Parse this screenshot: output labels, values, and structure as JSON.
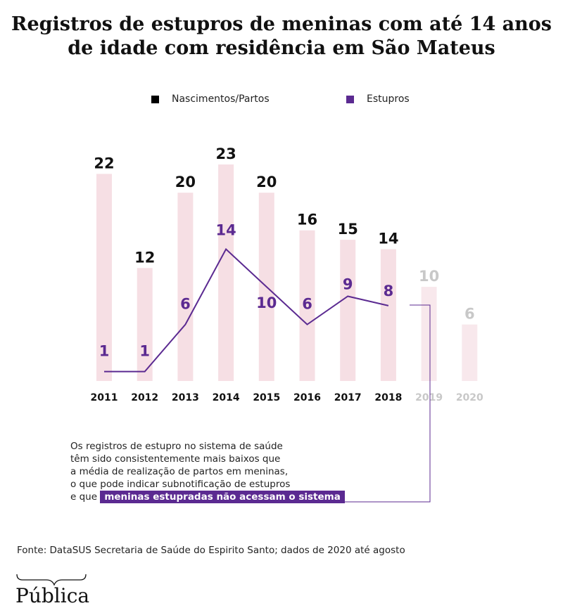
{
  "title": {
    "line1": "Registros de estupros de meninas com até 14 anos",
    "line2": "de idade com residência em São Mateus"
  },
  "legend": {
    "births": "Nascimentos/Partos",
    "rapes": "Estupros"
  },
  "colors": {
    "bar": "#f6dfe4",
    "bar_faded": "#f8e8ec",
    "line": "#5b2a91",
    "births_label": "#111111",
    "faded_label": "#c8c8c8",
    "legend_births": "#000000",
    "legend_rapes": "#5b2a91"
  },
  "chart_data": {
    "type": "bar",
    "categories": [
      "2011",
      "2012",
      "2013",
      "2014",
      "2015",
      "2016",
      "2017",
      "2018",
      "2019",
      "2020"
    ],
    "series": [
      {
        "name": "Nascimentos/Partos",
        "type": "bar",
        "values": [
          22,
          12,
          20,
          23,
          20,
          16,
          15,
          14,
          10,
          6
        ]
      },
      {
        "name": "Estupros",
        "type": "line",
        "values": [
          1,
          1,
          6,
          14,
          10,
          6,
          9,
          8,
          null,
          null
        ]
      }
    ],
    "faded_categories": [
      "2019",
      "2020"
    ],
    "ylim": [
      0,
      23
    ],
    "grid": false,
    "legend_position": "top"
  },
  "note": {
    "line1": "Os registros de estupro no sistema de saúde",
    "line2": "têm sido consistentemente mais baixos que",
    "line3": "a média de realização de partos em meninas,",
    "line4": "o que pode indicar subnotificação de estupros",
    "line5_prefix": "e que",
    "highlight": "meninas estupradas não acessam o sistema"
  },
  "source": "Fonte: DataSUS Secretaria de Saúde do Espirito Santo; dados de 2020 até agosto",
  "logo": "Pública"
}
